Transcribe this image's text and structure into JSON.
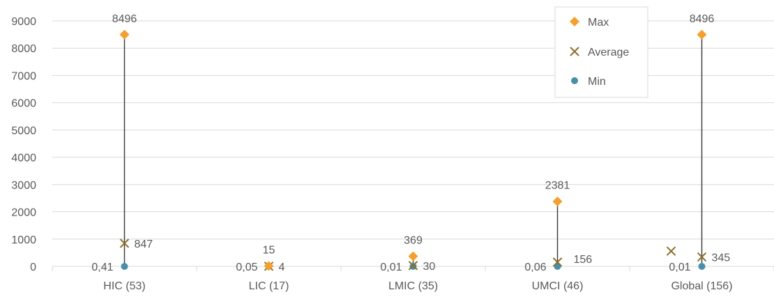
{
  "chart_data": {
    "type": "scatter",
    "categories": [
      "HIC (53)",
      "LIC (17)",
      "LMIC (35)",
      "UMCI (46)",
      "Global (156)"
    ],
    "ylim": [
      0,
      9000
    ],
    "yticks": [
      0,
      1000,
      2000,
      3000,
      4000,
      5000,
      6000,
      7000,
      8000,
      9000
    ],
    "grid": true,
    "legend_position": "top-right",
    "series": [
      {
        "name": "Max",
        "marker": "diamond",
        "color": "#F4A031",
        "values": [
          8496,
          15,
          369,
          2381,
          8496
        ]
      },
      {
        "name": "Average",
        "marker": "x",
        "color": "#8B6E2B",
        "values": [
          847,
          4,
          30,
          156,
          345
        ],
        "extra_points": [
          {
            "category_index": 4,
            "y": 560
          }
        ]
      },
      {
        "name": "Min",
        "marker": "circle",
        "color": "#4A8FA8",
        "values": [
          0.41,
          0.05,
          0.01,
          0.06,
          0.01
        ]
      }
    ],
    "labels": {
      "max": [
        "8496",
        "15",
        "369",
        "2381",
        "8496"
      ],
      "average": [
        "847",
        "4",
        "30",
        "156",
        "345"
      ],
      "min": [
        "0,41",
        "0,05",
        "0,01",
        "0,06",
        "0,01"
      ]
    }
  },
  "colors": {
    "grid": "#D9D9D9",
    "range_line": "#404040",
    "axis_text": "#595959"
  }
}
